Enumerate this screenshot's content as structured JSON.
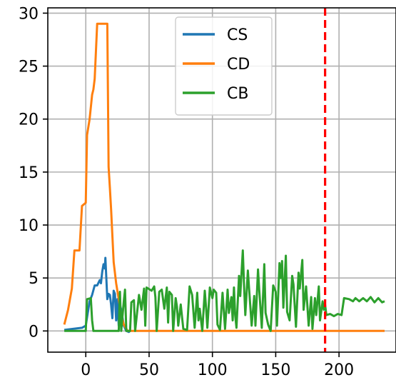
{
  "chart_data": {
    "type": "line",
    "title": "",
    "xlabel": "",
    "ylabel": "",
    "xlim": [
      -30,
      245
    ],
    "ylim": [
      -2,
      30.5
    ],
    "x_ticks": [
      0,
      50,
      100,
      150,
      200
    ],
    "y_ticks": [
      0,
      5,
      10,
      15,
      20,
      25,
      30
    ],
    "x_tick_labels": [
      "0",
      "50",
      "100",
      "150",
      "200"
    ],
    "y_tick_labels": [
      "0",
      "5",
      "10",
      "15",
      "20",
      "25",
      "30"
    ],
    "grid": true,
    "legend_position": "top-center",
    "vline": {
      "x": 189,
      "color": "#ff0000",
      "style": "dashed"
    },
    "series": [
      {
        "name": "CS",
        "color": "#1f77b4",
        "points": [
          [
            -17,
            0.1
          ],
          [
            -10,
            0.2
          ],
          [
            -3,
            0.3
          ],
          [
            0,
            0.5
          ],
          [
            3,
            2.8
          ],
          [
            5,
            3.4
          ],
          [
            7,
            4.3
          ],
          [
            9,
            4.3
          ],
          [
            11,
            4.8
          ],
          [
            12,
            4.5
          ],
          [
            13,
            5.6
          ],
          [
            14,
            6.3
          ],
          [
            15,
            5.9
          ],
          [
            15.5,
            6.9
          ],
          [
            16,
            5.6
          ],
          [
            17,
            3.0
          ],
          [
            18,
            3.5
          ],
          [
            19,
            3.4
          ],
          [
            20,
            2.5
          ],
          [
            21,
            1.2
          ],
          [
            22,
            3.8
          ],
          [
            23,
            3.5
          ],
          [
            24,
            1.0
          ],
          [
            25,
            3.0
          ],
          [
            26,
            0.5
          ],
          [
            27,
            2.5
          ],
          [
            28,
            2.0
          ],
          [
            30,
            0.5
          ],
          [
            32,
            0.0
          ],
          [
            34,
            -0.1
          ],
          [
            35,
            0.0
          ]
        ]
      },
      {
        "name": "CD",
        "color": "#ff7f0e",
        "points": [
          [
            -17,
            0.6
          ],
          [
            -14,
            2.0
          ],
          [
            -11,
            4.0
          ],
          [
            -9,
            7.6
          ],
          [
            -5,
            7.6
          ],
          [
            -3,
            11.8
          ],
          [
            0,
            12.1
          ],
          [
            1,
            18.5
          ],
          [
            3,
            20.0
          ],
          [
            5,
            22.3
          ],
          [
            6,
            22.8
          ],
          [
            7,
            23.8
          ],
          [
            9,
            29.0
          ],
          [
            17,
            29.0
          ],
          [
            18,
            15.5
          ],
          [
            19,
            13.5
          ],
          [
            20,
            11.5
          ],
          [
            22,
            6.5
          ],
          [
            24,
            4.5
          ],
          [
            26,
            3.0
          ],
          [
            28,
            1.5
          ],
          [
            30,
            0.6
          ],
          [
            33,
            0.0
          ],
          [
            40,
            0.0
          ],
          [
            100,
            0.0
          ],
          [
            150,
            0.0
          ],
          [
            189,
            0.0
          ],
          [
            200,
            0.0
          ],
          [
            236,
            0.0
          ]
        ]
      },
      {
        "name": "CB",
        "color": "#2ca02c",
        "points": [
          [
            -17,
            0.0
          ],
          [
            -5,
            0.0
          ],
          [
            0,
            0.0
          ],
          [
            1,
            3.0
          ],
          [
            4,
            3.1
          ],
          [
            5,
            1.0
          ],
          [
            6,
            0.0
          ],
          [
            26,
            0.0
          ],
          [
            27,
            3.7
          ],
          [
            28,
            0.0
          ],
          [
            30,
            2.8
          ],
          [
            31,
            3.9
          ],
          [
            32,
            0.0
          ],
          [
            35,
            0.0
          ],
          [
            36,
            2.7
          ],
          [
            38,
            2.9
          ],
          [
            39,
            0.0
          ],
          [
            42,
            3.4
          ],
          [
            44,
            2.0
          ],
          [
            46,
            4.0
          ],
          [
            47,
            0.5
          ],
          [
            48,
            4.1
          ],
          [
            52,
            3.8
          ],
          [
            54,
            4.2
          ],
          [
            55,
            3.2
          ],
          [
            56,
            0.0
          ],
          [
            58,
            3.7
          ],
          [
            60,
            3.9
          ],
          [
            62,
            2.1
          ],
          [
            64,
            4.1
          ],
          [
            65,
            0.8
          ],
          [
            66,
            3.7
          ],
          [
            68,
            3.4
          ],
          [
            69,
            0.0
          ],
          [
            71,
            3.1
          ],
          [
            72,
            2.3
          ],
          [
            73,
            0.5
          ],
          [
            75,
            2.5
          ],
          [
            77,
            0.2
          ],
          [
            80,
            0.1
          ],
          [
            82,
            4.2
          ],
          [
            84,
            3.4
          ],
          [
            86,
            0.3
          ],
          [
            88,
            3.6
          ],
          [
            89,
            1.0
          ],
          [
            90,
            2.1
          ],
          [
            92,
            0.0
          ],
          [
            94,
            3.8
          ],
          [
            95,
            2.2
          ],
          [
            96,
            0.3
          ],
          [
            98,
            4.1
          ],
          [
            100,
            3.1
          ],
          [
            101,
            3.9
          ],
          [
            103,
            3.6
          ],
          [
            104,
            0.6
          ],
          [
            106,
            0.1
          ],
          [
            108,
            3.6
          ],
          [
            110,
            0.2
          ],
          [
            112,
            3.9
          ],
          [
            113,
            1.7
          ],
          [
            115,
            3.2
          ],
          [
            116,
            1.0
          ],
          [
            117,
            4.1
          ],
          [
            118,
            1.5
          ],
          [
            119,
            0.3
          ],
          [
            121,
            5.2
          ],
          [
            122,
            3.3
          ],
          [
            124,
            7.6
          ],
          [
            125,
            4.2
          ],
          [
            126,
            1.5
          ],
          [
            128,
            5.7
          ],
          [
            129,
            3.9
          ],
          [
            131,
            0.5
          ],
          [
            133,
            3.3
          ],
          [
            134,
            0.5
          ],
          [
            136,
            5.8
          ],
          [
            137,
            3.9
          ],
          [
            139,
            0.3
          ],
          [
            141,
            6.3
          ],
          [
            142,
            1.7
          ],
          [
            144,
            0.6
          ],
          [
            146,
            0.0
          ],
          [
            148,
            4.3
          ],
          [
            150,
            3.7
          ],
          [
            151,
            0.5
          ],
          [
            153,
            6.4
          ],
          [
            154,
            5.0
          ],
          [
            155,
            6.6
          ],
          [
            156,
            2.2
          ],
          [
            158,
            7.1
          ],
          [
            159,
            1.8
          ],
          [
            161,
            1.0
          ],
          [
            163,
            5.2
          ],
          [
            164,
            4.4
          ],
          [
            166,
            0.4
          ],
          [
            168,
            5.5
          ],
          [
            169,
            4.0
          ],
          [
            171,
            6.7
          ],
          [
            172,
            2.0
          ],
          [
            174,
            4.2
          ],
          [
            176,
            0.5
          ],
          [
            178,
            3.2
          ],
          [
            179,
            0.2
          ],
          [
            181,
            3.1
          ],
          [
            182,
            1.5
          ],
          [
            184,
            4.2
          ],
          [
            185,
            1.0
          ],
          [
            187,
            2.8
          ],
          [
            188,
            2.0
          ],
          [
            189,
            2.5
          ],
          [
            190,
            1.5
          ],
          [
            193,
            1.6
          ],
          [
            196,
            1.4
          ],
          [
            199,
            1.6
          ],
          [
            202,
            1.5
          ],
          [
            204,
            3.1
          ],
          [
            208,
            3.0
          ],
          [
            211,
            2.8
          ],
          [
            213,
            3.1
          ],
          [
            216,
            2.8
          ],
          [
            219,
            3.1
          ],
          [
            222,
            2.8
          ],
          [
            225,
            3.2
          ],
          [
            228,
            2.7
          ],
          [
            231,
            3.1
          ],
          [
            234,
            2.7
          ],
          [
            236,
            2.8
          ]
        ]
      }
    ]
  }
}
